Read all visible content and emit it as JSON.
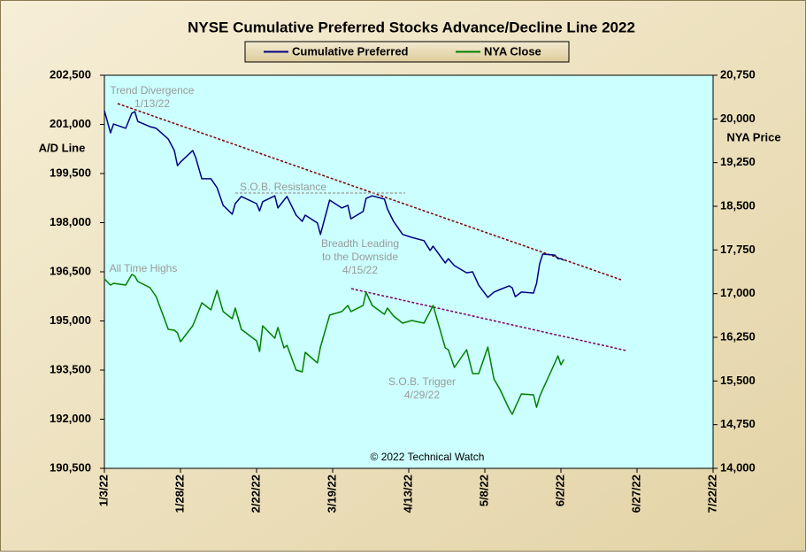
{
  "chart_data": {
    "type": "line",
    "title": "NYSE Cumulative  Preferred Stocks Advance/Decline  Line 2022",
    "y_label": "A/D Line",
    "y2_label": "NYA Price",
    "x": [
      "2022-01-03",
      "2022-01-05",
      "2022-01-06",
      "2022-01-10",
      "2022-01-12",
      "2022-01-13",
      "2022-01-14",
      "2022-01-18",
      "2022-01-20",
      "2022-01-24",
      "2022-01-26",
      "2022-01-27",
      "2022-01-28",
      "2022-02-01",
      "2022-02-02",
      "2022-02-04",
      "2022-02-07",
      "2022-02-09",
      "2022-02-11",
      "2022-02-14",
      "2022-02-15",
      "2022-02-17",
      "2022-02-22",
      "2022-02-23",
      "2022-02-24",
      "2022-02-28",
      "2022-03-01",
      "2022-03-03",
      "2022-03-04",
      "2022-03-07",
      "2022-03-09",
      "2022-03-10",
      "2022-03-14",
      "2022-03-15",
      "2022-03-18",
      "2022-03-22",
      "2022-03-24",
      "2022-03-25",
      "2022-03-29",
      "2022-03-30",
      "2022-04-01",
      "2022-04-05",
      "2022-04-06",
      "2022-04-08",
      "2022-04-11",
      "2022-04-14",
      "2022-04-18",
      "2022-04-20",
      "2022-04-21",
      "2022-04-25",
      "2022-04-26",
      "2022-04-28",
      "2022-05-02",
      "2022-05-04",
      "2022-05-06",
      "2022-05-09",
      "2022-05-11",
      "2022-05-13",
      "2022-05-16",
      "2022-05-17",
      "2022-05-18",
      "2022-05-20",
      "2022-05-24",
      "2022-05-25",
      "2022-05-26",
      "2022-05-27",
      "2022-05-31",
      "2022-06-01",
      "2022-06-02",
      "2022-06-03"
    ],
    "series": [
      {
        "name": "Cumulative Preferred",
        "color": "#000080",
        "values": [
          201420,
          200740,
          201010,
          200880,
          201340,
          201390,
          201090,
          200930,
          200880,
          200550,
          200200,
          199740,
          199850,
          200200,
          199990,
          199340,
          199340,
          199070,
          198530,
          198260,
          198580,
          198800,
          198580,
          198360,
          198640,
          198820,
          198450,
          198690,
          198800,
          198230,
          198040,
          198230,
          197990,
          197640,
          198690,
          198450,
          198530,
          198120,
          198340,
          198740,
          198820,
          198720,
          198420,
          198040,
          197640,
          197550,
          197450,
          197150,
          197280,
          196770,
          196900,
          196690,
          196470,
          196500,
          196090,
          195720,
          195880,
          195960,
          196070,
          196010,
          195740,
          195880,
          195850,
          196150,
          196740,
          197040,
          197010,
          196900,
          196900,
          196850
        ]
      },
      {
        "name": "NYA Close",
        "color": "#008000",
        "axis": "y2",
        "values": [
          17254,
          17147,
          17178,
          17147,
          17330,
          17300,
          17208,
          17102,
          16950,
          16387,
          16372,
          16326,
          16174,
          16448,
          16570,
          16843,
          16722,
          17056,
          16692,
          16570,
          16752,
          16387,
          16189,
          16007,
          16448,
          16235,
          16418,
          16067,
          16113,
          15688,
          15657,
          15992,
          15810,
          16083,
          16631,
          16692,
          16798,
          16692,
          16798,
          17026,
          16798,
          16646,
          16752,
          16616,
          16494,
          16539,
          16494,
          16692,
          16798,
          16067,
          16037,
          15733,
          16037,
          15627,
          15627,
          16083,
          15536,
          15353,
          15018,
          14927,
          15048,
          15277,
          15262,
          15048,
          15231,
          15353,
          15809,
          15931,
          15779,
          15870
        ]
      }
    ],
    "xlim": [
      "2022-01-03",
      "2022-07-22"
    ],
    "xticks": [
      {
        "value": "2022-01-03",
        "label": "1/3/22"
      },
      {
        "value": "2022-01-28",
        "label": "1/28/22"
      },
      {
        "value": "2022-02-22",
        "label": "2/22/22"
      },
      {
        "value": "2022-03-19",
        "label": "3/19/22"
      },
      {
        "value": "2022-04-13",
        "label": "4/13/22"
      },
      {
        "value": "2022-05-08",
        "label": "5/8/22"
      },
      {
        "value": "2022-06-02",
        "label": "6/2/22"
      },
      {
        "value": "2022-06-27",
        "label": "6/27/22"
      },
      {
        "value": "2022-07-22",
        "label": "7/22/22"
      }
    ],
    "ylim": [
      190500,
      202500
    ],
    "yticks": [
      {
        "value": 190500,
        "label": "190,500"
      },
      {
        "value": 192000,
        "label": "192,000"
      },
      {
        "value": 193500,
        "label": "193,500"
      },
      {
        "value": 195000,
        "label": "195,000"
      },
      {
        "value": 196500,
        "label": "196,500"
      },
      {
        "value": 198000,
        "label": "198,000"
      },
      {
        "value": 199500,
        "label": "199,500"
      },
      {
        "value": 201000,
        "label": "201,000"
      },
      {
        "value": 202500,
        "label": "202,500"
      }
    ],
    "y2lim": [
      14000,
      20750
    ],
    "y2ticks": [
      {
        "value": 14000,
        "label": "14,000"
      },
      {
        "value": 14750,
        "label": "14,750"
      },
      {
        "value": 15500,
        "label": "15,500"
      },
      {
        "value": 16250,
        "label": "16,250"
      },
      {
        "value": 17000,
        "label": "17,000"
      },
      {
        "value": 17750,
        "label": "17,750"
      },
      {
        "value": 18500,
        "label": "18,500"
      },
      {
        "value": 19250,
        "label": "19,250"
      },
      {
        "value": 20000,
        "label": "20,000"
      },
      {
        "value": 20750,
        "label": "20,750"
      }
    ],
    "annotations": [
      "Trend Divergence",
      "1/13/22",
      "S.O.B. Resistance",
      "Breadth Leading",
      "to the Downside",
      "4/15/22",
      "All Time Highs",
      "S.O.B. Trigger",
      "4/29/22",
      "© 2022 Technical Watch"
    ],
    "legend": "top"
  }
}
